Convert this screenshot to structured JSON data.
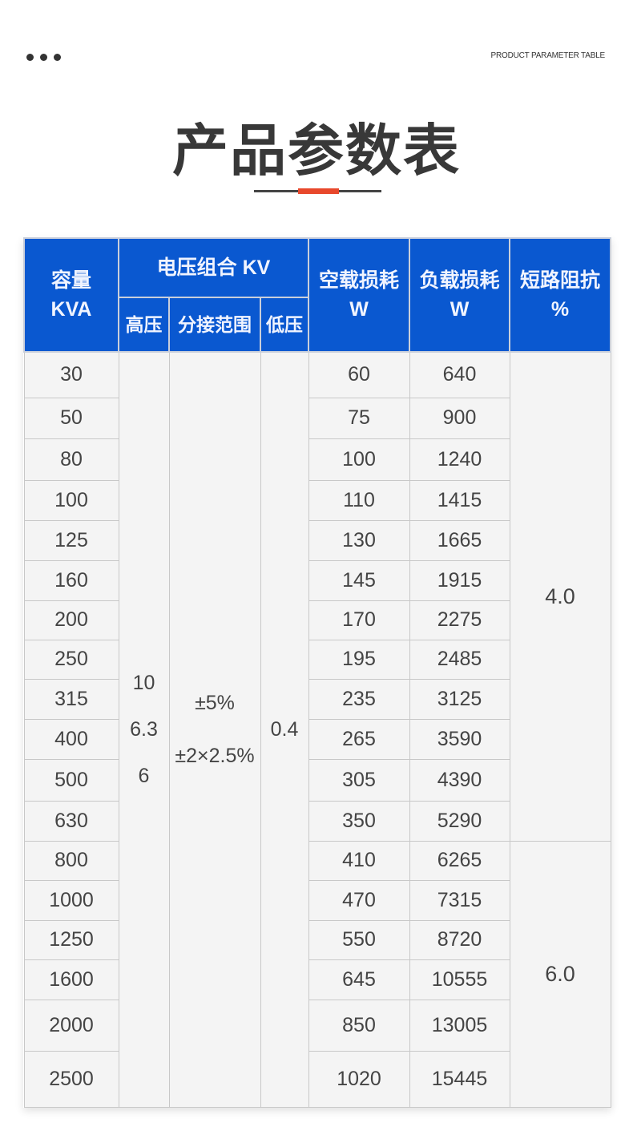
{
  "header": {
    "subtitle": "PRODUCT PARAMETER TABLE",
    "title": "产品参数表",
    "accent_color": "#e8482c",
    "header_color": "#0a58d0"
  },
  "columns": {
    "capacity": [
      "容量",
      "KVA"
    ],
    "voltage_group": "电压组合 KV",
    "high_voltage": "高压",
    "tap_range": "分接范围",
    "low_voltage": "低压",
    "no_load_loss": [
      "空载损耗",
      "W"
    ],
    "load_loss": [
      "负载损耗",
      "W"
    ],
    "impedance": [
      "短路阻抗",
      "%"
    ]
  },
  "merged": {
    "high_voltage": [
      "10",
      "6.3",
      "6"
    ],
    "tap_range": [
      "±5%",
      "±2×2.5%"
    ],
    "low_voltage": "0.4",
    "impedance_a": "4.0",
    "impedance_b": "6.0"
  },
  "rows": [
    [
      "30",
      "60",
      "640"
    ],
    [
      "50",
      "75",
      "900"
    ],
    [
      "80",
      "100",
      "1240"
    ],
    [
      "100",
      "110",
      "1415"
    ],
    [
      "125",
      "130",
      "1665"
    ],
    [
      "160",
      "145",
      "1915"
    ],
    [
      "200",
      "170",
      "2275"
    ],
    [
      "250",
      "195",
      "2485"
    ],
    [
      "315",
      "235",
      "3125"
    ],
    [
      "400",
      "265",
      "3590"
    ],
    [
      "500",
      "305",
      "4390"
    ],
    [
      "630",
      "350",
      "5290"
    ],
    [
      "800",
      "410",
      "6265"
    ],
    [
      "1000",
      "470",
      "7315"
    ],
    [
      "1250",
      "550",
      "8720"
    ],
    [
      "1600",
      "645",
      "10555"
    ],
    [
      "2000",
      "850",
      "13005"
    ],
    [
      "2500",
      "1020",
      "15445"
    ]
  ]
}
